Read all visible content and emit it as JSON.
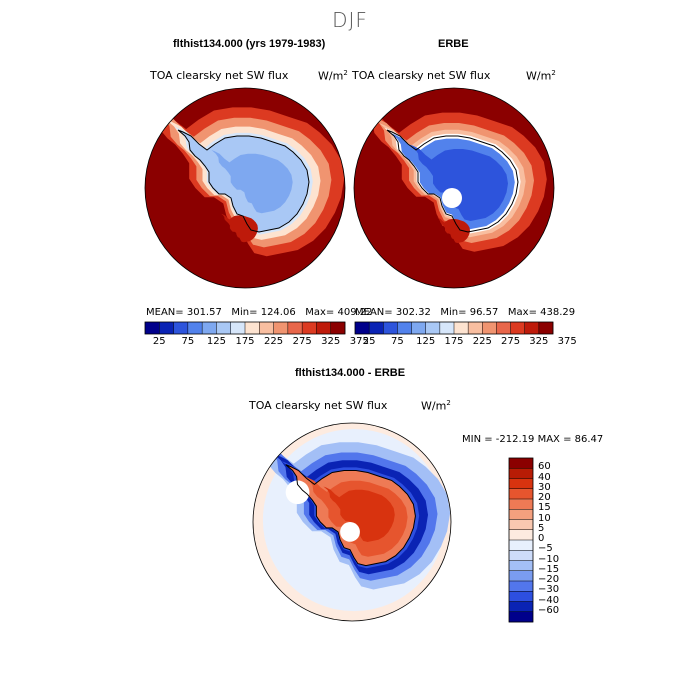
{
  "title": "DJF",
  "colors": {
    "abs_scale": [
      "#00008b",
      "#0a23b4",
      "#2d54dc",
      "#5282ec",
      "#7ea8f0",
      "#a9c8f5",
      "#d6e6fa",
      "#fde3d0",
      "#f8bea0",
      "#f09470",
      "#e8664a",
      "#dc3a21",
      "#be1a0a",
      "#8b0000"
    ],
    "diff_scale": [
      "#00008b",
      "#0a23b4",
      "#2d4fe0",
      "#5276ec",
      "#7a9cf0",
      "#a3bff6",
      "#cddcfa",
      "#e8f0fd",
      "#fdebe0",
      "#f9c8b0",
      "#f4a07e",
      "#ee7a55",
      "#e6552e",
      "#d8330f",
      "#b81c05",
      "#8b0000"
    ]
  },
  "chart_data": [
    {
      "type": "heatmap",
      "title": "flthist134.000 (yrs 1979-1983)",
      "variable": "TOA clearsky net SW flux",
      "units": "W/m",
      "units_exp": "2",
      "projection": "polar stereographic (south pole)",
      "stats": {
        "mean_label": "MEAN=",
        "mean": "301.57",
        "min_label": "Min=",
        "min": "124.06",
        "max_label": "Max=",
        "max": "409.22"
      },
      "colorbar_ticks": [
        "25",
        "75",
        "125",
        "175",
        "225",
        "275",
        "325",
        "375"
      ]
    },
    {
      "type": "heatmap",
      "title": "ERBE",
      "variable": "TOA clearsky net SW flux",
      "units": "W/m",
      "units_exp": "2",
      "projection": "polar stereographic (south pole)",
      "stats": {
        "mean_label": "MEAN=",
        "mean": "302.32",
        "min_label": "Min=",
        "min": "96.57",
        "max_label": "Max=",
        "max": "438.29"
      },
      "colorbar_ticks": [
        "25",
        "75",
        "125",
        "175",
        "225",
        "275",
        "325",
        "375"
      ]
    },
    {
      "type": "heatmap",
      "title": "flthist134.000 - ERBE",
      "variable": "TOA clearsky net SW flux",
      "units": "W/m",
      "units_exp": "2",
      "projection": "polar stereographic (south pole)",
      "minmax": "MIN = -212.19 MAX =  86.47",
      "colorbar_ticks": [
        "60",
        "40",
        "30",
        "20",
        "15",
        "10",
        "5",
        "0",
        "−5",
        "−10",
        "−15",
        "−20",
        "−30",
        "−40",
        "−60"
      ]
    }
  ]
}
